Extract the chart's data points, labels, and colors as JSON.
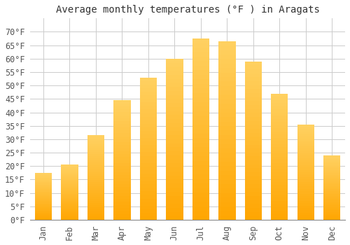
{
  "title": "Average monthly temperatures (°F ) in Aragats",
  "months": [
    "Jan",
    "Feb",
    "Mar",
    "Apr",
    "May",
    "Jun",
    "Jul",
    "Aug",
    "Sep",
    "Oct",
    "Nov",
    "Dec"
  ],
  "values": [
    17.5,
    20.5,
    31.5,
    44.5,
    53,
    60,
    67.5,
    66.5,
    59,
    47,
    35.5,
    24
  ],
  "bar_color_bottom": "#FFA500",
  "bar_color_top": "#FFD060",
  "background_color": "#ffffff",
  "grid_color": "#cccccc",
  "ylim": [
    0,
    75
  ],
  "yticks": [
    0,
    5,
    10,
    15,
    20,
    25,
    30,
    35,
    40,
    45,
    50,
    55,
    60,
    65,
    70
  ],
  "title_fontsize": 10,
  "tick_fontsize": 8.5,
  "bar_width": 0.65
}
